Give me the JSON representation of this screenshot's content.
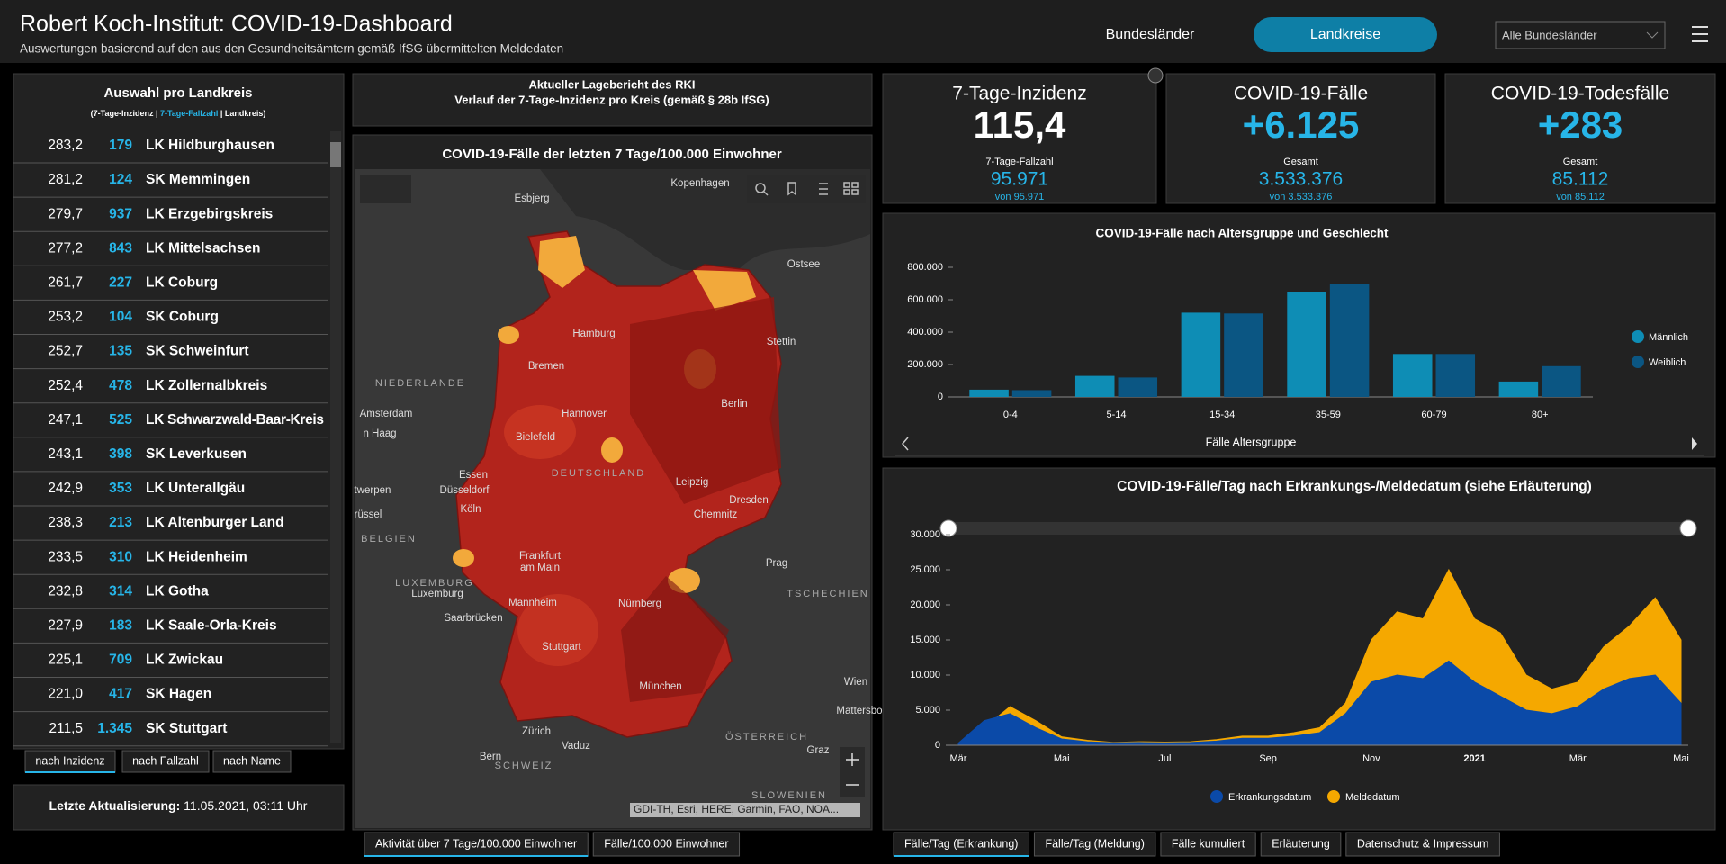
{
  "header": {
    "title": "Robert Koch-Institut: COVID-19-Dashboard",
    "subtitle": "Auswertungen basierend auf den aus den Gesundheitsämtern gemäß IfSG übermittelten Meldedaten",
    "nav": [
      "Bundesländer",
      "Landkreise"
    ],
    "dropdown": "Alle Bundesländer"
  },
  "list": {
    "title": "Auswahl pro Landkreis",
    "legend": [
      "(7-Tage-Inzidenz | ",
      "7-Tage-Fallzahl",
      " | Landkreis)"
    ],
    "rows": [
      [
        "283,2",
        "179",
        "LK Hildburghausen"
      ],
      [
        "281,2",
        "124",
        "SK Memmingen"
      ],
      [
        "279,7",
        "937",
        "LK Erzgebirgskreis"
      ],
      [
        "277,2",
        "843",
        "LK Mittelsachsen"
      ],
      [
        "261,7",
        "227",
        "LK Coburg"
      ],
      [
        "253,2",
        "104",
        "SK Coburg"
      ],
      [
        "252,7",
        "135",
        "SK Schweinfurt"
      ],
      [
        "252,4",
        "478",
        "LK Zollernalbkreis"
      ],
      [
        "247,1",
        "525",
        "LK Schwarzwald-Baar-Kreis"
      ],
      [
        "243,1",
        "398",
        "SK Leverkusen"
      ],
      [
        "242,9",
        "353",
        "LK Unterallgäu"
      ],
      [
        "238,3",
        "213",
        "LK Altenburger Land"
      ],
      [
        "233,5",
        "310",
        "LK Heidenheim"
      ],
      [
        "232,8",
        "314",
        "LK Gotha"
      ],
      [
        "227,9",
        "183",
        "LK Saale-Orla-Kreis"
      ],
      [
        "225,1",
        "709",
        "LK Zwickau"
      ],
      [
        "221,0",
        "417",
        "SK Hagen"
      ],
      [
        "211,5",
        "1.345",
        "SK Stuttgart"
      ]
    ],
    "tabs": [
      "nach Inzidenz",
      "nach Fallzahl",
      "nach Name"
    ]
  },
  "update": {
    "label": "Letzte Aktualisierung:",
    "value": "11.05.2021, 03:11 Uhr"
  },
  "map": {
    "report_title": "Aktueller Lagebericht des RKI",
    "report_subtitle": "Verlauf der 7-Tage-Inzidenz pro Kreis (gemäß § 28b IfSG)",
    "title": "COVID-19-Fälle der letzten 7 Tage/100.000 Einwohner",
    "labels": [
      "Esbjerg",
      "Kopenhagen",
      "Ostsee",
      "Hamburg",
      "Bremen",
      "Stettin",
      "NIEDERLANDE",
      "Amsterdam",
      "n Haag",
      "Hannover",
      "Berlin",
      "Bielefeld",
      "DEUTSCHLAND",
      "Essen",
      "Düsseldorf",
      "Leipzig",
      "twerpen",
      "Köln",
      "Dresden",
      "rüssel",
      "Chemnitz",
      "BELGIEN",
      "Frankfurt",
      "am Main",
      "Prag",
      "TSCHECHIEN",
      "LUXEMBURG",
      "Luxemburg",
      "Mannheim",
      "Nürnberg",
      "Saarbrücken",
      "Stuttgart",
      "Wien",
      "Mattersbo",
      "München",
      "Zürich",
      "Vaduz",
      "ÖSTERREICH",
      "Graz",
      "Bern",
      "SCHWEIZ",
      "SLOWENIEN"
    ],
    "attribution": "GDI-TH, Esri, HERE, Garmin, FAO, NOA...",
    "tabs": [
      "Aktivität über 7 Tage/100.000 Einwohner",
      "Fälle/100.000 Einwohner"
    ]
  },
  "kpis": [
    {
      "title": "7-Tage-Inzidenz",
      "value": "115,4",
      "sub_label": "7-Tage-Fallzahl",
      "sub_value": "95.971",
      "sub_note": "von 95.971"
    },
    {
      "title": "COVID-19-Fälle",
      "value": "+6.125",
      "sub_label": "Gesamt",
      "sub_value": "3.533.376",
      "sub_note": "von 3.533.376"
    },
    {
      "title": "COVID-19-Todesfälle",
      "value": "+283",
      "sub_label": "Gesamt",
      "sub_value": "85.112",
      "sub_note": "von 85.112"
    }
  ],
  "chart_data": [
    {
      "type": "bar",
      "title": "COVID-19-Fälle nach Altersgruppe und Geschlecht",
      "x_label": "Fälle Altersgruppe",
      "categories": [
        "0-4",
        "5-14",
        "15-34",
        "35-59",
        "60-79",
        "80+"
      ],
      "series": [
        {
          "name": "Männlich",
          "color": "#0e8db5",
          "values": [
            45000,
            130000,
            520000,
            650000,
            265000,
            95000
          ]
        },
        {
          "name": "Weiblich",
          "color": "#0b5683",
          "values": [
            42000,
            120000,
            515000,
            695000,
            265000,
            190000
          ]
        }
      ],
      "ylim": [
        0,
        800000
      ],
      "yticks": [
        0,
        {
          "value": 200000,
          "label": "200.000"
        },
        {
          "value": 400000,
          "label": "400.000"
        },
        {
          "value": 600000,
          "label": "600.000"
        },
        {
          "value": 800000,
          "label": "800.000"
        }
      ],
      "legend": "right"
    },
    {
      "type": "area",
      "title": "COVID-19-Fälle/Tag nach Erkrankungs-/Meldedatum (siehe Erläuterung)",
      "categories": [
        "Mär",
        null,
        null,
        null,
        "Mai",
        null,
        null,
        null,
        "Jul",
        null,
        null,
        null,
        "Sep",
        null,
        null,
        null,
        "Nov",
        null,
        null,
        null,
        "2021",
        null,
        null,
        null,
        "Mär",
        null,
        null,
        null,
        "Mai"
      ],
      "series": [
        {
          "name": "Meldedatum",
          "color": "#f5a800",
          "values": [
            200,
            2500,
            5500,
            3500,
            1200,
            700,
            400,
            500,
            450,
            500,
            800,
            1300,
            1300,
            1800,
            2500,
            6000,
            15000,
            19000,
            18000,
            25000,
            18000,
            16000,
            10000,
            8000,
            9000,
            14000,
            17000,
            21000,
            15000
          ]
        },
        {
          "name": "Erkrankungsdatum",
          "color": "#0b4aa8",
          "values": [
            300,
            3500,
            4500,
            2500,
            900,
            500,
            350,
            400,
            350,
            400,
            600,
            1000,
            1000,
            1300,
            1800,
            4500,
            9000,
            10000,
            9500,
            12000,
            9000,
            7000,
            5000,
            4500,
            5500,
            8000,
            9500,
            10000,
            6000
          ]
        }
      ],
      "ylim": [
        0,
        30000
      ],
      "yticks": [
        0,
        {
          "value": 5000,
          "label": "5.000"
        },
        {
          "value": 10000,
          "label": "10.000"
        },
        {
          "value": 15000,
          "label": "15.000"
        },
        {
          "value": 20000,
          "label": "20.000"
        },
        {
          "value": 25000,
          "label": "25.000"
        },
        {
          "value": 30000,
          "label": "30.000"
        }
      ],
      "legend": "bottom"
    }
  ],
  "bottom_tabs": [
    "Fälle/Tag (Erkrankung)",
    "Fälle/Tag (Meldung)",
    "Fälle kumuliert",
    "Erläuterung",
    "Datenschutz & Impressum"
  ]
}
